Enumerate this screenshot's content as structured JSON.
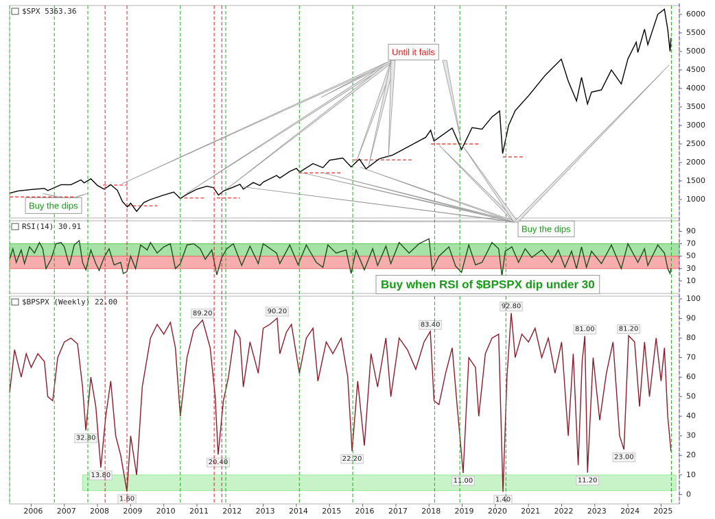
{
  "chart_data": [
    {
      "type": "line",
      "title": "$SPX 5363.36",
      "color": "#000000",
      "xlim": [
        2005.35,
        2025.55
      ],
      "ylim": [
        500,
        6240
      ],
      "yticks": [
        1000,
        1500,
        2000,
        2500,
        3000,
        3500,
        4000,
        4500,
        5000,
        5500,
        6000
      ],
      "x": [
        2005.35,
        2005.6,
        2006.0,
        2006.4,
        2006.5,
        2006.9,
        2007.2,
        2007.5,
        2007.6,
        2007.8,
        2008.0,
        2008.2,
        2008.4,
        2008.6,
        2008.75,
        2008.9,
        2009.0,
        2009.18,
        2009.4,
        2009.6,
        2010.0,
        2010.3,
        2010.5,
        2010.7,
        2011.0,
        2011.3,
        2011.5,
        2011.65,
        2011.8,
        2012.0,
        2012.3,
        2012.4,
        2012.7,
        2012.9,
        2013.0,
        2013.4,
        2013.5,
        2013.8,
        2014.0,
        2014.1,
        2014.5,
        2014.8,
        2015.0,
        2015.4,
        2015.65,
        2015.9,
        2016.1,
        2016.5,
        2016.9,
        2017.3,
        2017.9,
        2018.05,
        2018.15,
        2018.7,
        2018.98,
        2019.3,
        2019.6,
        2019.9,
        2020.13,
        2020.22,
        2020.4,
        2020.6,
        2020.9,
        2021.0,
        2021.5,
        2021.99,
        2022.2,
        2022.45,
        2022.6,
        2022.78,
        2022.9,
        2023.2,
        2023.5,
        2023.8,
        2024.0,
        2024.25,
        2024.3,
        2024.5,
        2024.6,
        2024.9,
        2025.1,
        2025.2,
        2025.27,
        2025.3
      ],
      "values": [
        1170,
        1230,
        1270,
        1300,
        1240,
        1400,
        1400,
        1530,
        1450,
        1560,
        1380,
        1280,
        1400,
        1250,
        950,
        800,
        900,
        680,
        920,
        1000,
        1120,
        1200,
        1030,
        1140,
        1280,
        1360,
        1320,
        1120,
        1230,
        1300,
        1410,
        1280,
        1460,
        1380,
        1470,
        1650,
        1580,
        1760,
        1840,
        1740,
        1970,
        1860,
        2060,
        2120,
        1880,
        2090,
        1830,
        2100,
        2200,
        2390,
        2680,
        2870,
        2580,
        2930,
        2350,
        2940,
        2900,
        3230,
        3390,
        2240,
        3000,
        3400,
        3700,
        3800,
        4350,
        4790,
        4200,
        3660,
        4300,
        3580,
        3900,
        3960,
        4500,
        4120,
        4800,
        5250,
        4970,
        5600,
        5180,
        6000,
        6140,
        5600,
        5000,
        5363.36
      ],
      "support_lines": [
        {
          "x": [
            2005.35,
            2007.3
          ],
          "value": 1070
        },
        {
          "x": [
            2008.17,
            2008.9
          ],
          "value": 1390
        },
        {
          "x": [
            2008.9,
            2009.8
          ],
          "value": 830
        },
        {
          "x": [
            2010.45,
            2011.27
          ],
          "value": 1040
        },
        {
          "x": [
            2011.6,
            2012.3
          ],
          "value": 1040
        },
        {
          "x": [
            2014.07,
            2015.4
          ],
          "value": 1720
        },
        {
          "x": [
            2015.72,
            2017.48
          ],
          "value": 2070
        },
        {
          "x": [
            2018.06,
            2019.55
          ],
          "value": 2500
        },
        {
          "x": [
            2020.23,
            2020.9
          ],
          "value": 2150
        }
      ],
      "support_color": "#e02020",
      "buy_lines": [
        2005.35,
        2006.7,
        2007.71,
        2010.5,
        2011.87,
        2014.09,
        2015.7,
        2018.17,
        2018.93,
        2020.32,
        2025.31
      ],
      "buy_line_color": "#22aa22",
      "fail_lines": [
        2008.23,
        2008.89,
        2011.52,
        2011.75
      ],
      "fail_line_color": "#e02020",
      "callouts": [
        {
          "text": "Until it fails",
          "color": "#e02020"
        },
        {
          "text": "Buy the dips",
          "color": "#1a9a1a"
        },
        {
          "text": "Buy the dips",
          "color": "#1a9a1a"
        }
      ]
    },
    {
      "type": "line",
      "title": "RSI(14) 30.91",
      "color": "#1d4d1d",
      "xlim": [
        2005.35,
        2025.55
      ],
      "ylim": [
        -10,
        107
      ],
      "yticks": [
        10,
        30,
        50,
        70,
        90
      ],
      "bands": [
        {
          "from": 50,
          "to": 70,
          "color": "#5cc85c"
        },
        {
          "from": 30,
          "to": 50,
          "color": "#f06a6a"
        }
      ],
      "x": [
        2005.35,
        2005.45,
        2005.55,
        2005.7,
        2005.8,
        2005.95,
        2006.1,
        2006.25,
        2006.35,
        2006.45,
        2006.6,
        2006.75,
        2006.9,
        2007.0,
        2007.15,
        2007.3,
        2007.45,
        2007.55,
        2007.65,
        2007.8,
        2007.95,
        2008.05,
        2008.2,
        2008.35,
        2008.5,
        2008.7,
        2008.78,
        2008.89,
        2009.0,
        2009.15,
        2009.3,
        2009.5,
        2009.6,
        2009.8,
        2010.0,
        2010.2,
        2010.35,
        2010.5,
        2010.7,
        2010.9,
        2011.1,
        2011.25,
        2011.45,
        2011.6,
        2011.75,
        2011.9,
        2012.1,
        2012.35,
        2012.6,
        2012.85,
        2013.0,
        2013.4,
        2013.5,
        2013.8,
        2014.05,
        2014.3,
        2014.6,
        2014.8,
        2014.95,
        2015.2,
        2015.5,
        2015.65,
        2015.8,
        2016.05,
        2016.3,
        2016.45,
        2016.7,
        2016.85,
        2017.1,
        2017.4,
        2017.7,
        2018.0,
        2018.1,
        2018.3,
        2018.6,
        2018.8,
        2018.98,
        2019.2,
        2019.4,
        2019.6,
        2019.9,
        2020.1,
        2020.2,
        2020.3,
        2020.5,
        2020.7,
        2020.9,
        2021.1,
        2021.4,
        2021.7,
        2021.9,
        2022.1,
        2022.3,
        2022.45,
        2022.6,
        2022.75,
        2022.9,
        2023.2,
        2023.5,
        2023.8,
        2024.0,
        2024.3,
        2024.5,
        2024.6,
        2024.9,
        2025.1,
        2025.2,
        2025.27,
        2025.3
      ],
      "values": [
        45,
        62,
        40,
        60,
        38,
        65,
        55,
        72,
        62,
        30,
        45,
        70,
        72,
        65,
        35,
        68,
        75,
        40,
        28,
        60,
        38,
        27,
        48,
        62,
        36,
        40,
        22,
        25,
        50,
        30,
        68,
        60,
        72,
        55,
        65,
        70,
        30,
        38,
        68,
        70,
        62,
        45,
        60,
        20,
        48,
        62,
        70,
        35,
        66,
        38,
        70,
        55,
        38,
        68,
        36,
        68,
        40,
        32,
        68,
        55,
        60,
        22,
        60,
        28,
        62,
        35,
        66,
        38,
        72,
        55,
        70,
        78,
        28,
        50,
        65,
        34,
        24,
        68,
        36,
        40,
        72,
        62,
        18,
        58,
        65,
        40,
        62,
        48,
        60,
        40,
        60,
        32,
        58,
        30,
        65,
        32,
        58,
        38,
        68,
        30,
        70,
        40,
        62,
        35,
        68,
        55,
        30,
        22,
        30.91
      ],
      "callouts": [
        {
          "text": "Buy when RSI of $BPSPX dip under 30",
          "color": "#1a9a1a"
        }
      ]
    },
    {
      "type": "line",
      "title": "$BPSPX (Weekly) 22.00",
      "color": "#8b1a2b",
      "xlim": [
        2005.35,
        2025.55
      ],
      "ylim": [
        -4.8,
        101.4
      ],
      "yticks": [
        0,
        10,
        20,
        30,
        40,
        50,
        60,
        70,
        80,
        90,
        100
      ],
      "xticks": [
        2006,
        2007,
        2008,
        2009,
        2010,
        2011,
        2012,
        2013,
        2014,
        2015,
        2016,
        2017,
        2018,
        2019,
        2020,
        2021,
        2022,
        2023,
        2024,
        2025
      ],
      "bands": [
        {
          "from": 2,
          "to": 10,
          "x": [
            2007.55,
            2025.45
          ],
          "color": "#9ae89a"
        }
      ],
      "x": [
        2005.35,
        2005.5,
        2005.7,
        2005.85,
        2006.0,
        2006.2,
        2006.4,
        2006.5,
        2006.65,
        2006.8,
        2007.0,
        2007.2,
        2007.4,
        2007.55,
        2007.65,
        2007.8,
        2007.95,
        2008.1,
        2008.25,
        2008.4,
        2008.55,
        2008.7,
        2008.89,
        2009.0,
        2009.18,
        2009.35,
        2009.6,
        2009.8,
        2010.0,
        2010.2,
        2010.35,
        2010.5,
        2010.7,
        2010.9,
        2011.17,
        2011.4,
        2011.55,
        2011.64,
        2011.8,
        2011.95,
        2012.15,
        2012.3,
        2012.4,
        2012.6,
        2012.85,
        2013.0,
        2013.2,
        2013.42,
        2013.5,
        2013.7,
        2013.85,
        2014.09,
        2014.3,
        2014.5,
        2014.65,
        2014.9,
        2015.1,
        2015.35,
        2015.55,
        2015.68,
        2015.85,
        2016.05,
        2016.25,
        2016.45,
        2016.7,
        2016.85,
        2017.1,
        2017.35,
        2017.6,
        2017.85,
        2018.04,
        2018.15,
        2018.3,
        2018.5,
        2018.7,
        2018.85,
        2019.03,
        2019.2,
        2019.4,
        2019.5,
        2019.7,
        2019.9,
        2020.1,
        2020.23,
        2020.35,
        2020.48,
        2020.6,
        2020.8,
        2021.0,
        2021.2,
        2021.4,
        2021.6,
        2021.8,
        2022.0,
        2022.2,
        2022.35,
        2022.5,
        2022.62,
        2022.7,
        2022.78,
        2022.95,
        2023.15,
        2023.35,
        2023.55,
        2023.75,
        2023.88,
        2024.02,
        2024.2,
        2024.35,
        2024.5,
        2024.65,
        2024.85,
        2025.0,
        2025.1,
        2025.2,
        2025.3
      ],
      "values": [
        52,
        74,
        60,
        72,
        65,
        72,
        68,
        50,
        48,
        70,
        78,
        80,
        77,
        55,
        32.8,
        60,
        45,
        13.8,
        40,
        58,
        30,
        20,
        1.6,
        30,
        10,
        55,
        80,
        87,
        82,
        88,
        75,
        40,
        70,
        84,
        89.2,
        75,
        50,
        20.4,
        48,
        60,
        84,
        80,
        55,
        78,
        62,
        85,
        87,
        90.2,
        72,
        83,
        87,
        62,
        80,
        85,
        58,
        78,
        72,
        80,
        60,
        22.2,
        58,
        25,
        72,
        55,
        80,
        50,
        80,
        74,
        64,
        78,
        83.4,
        48,
        46,
        62,
        75,
        45,
        11,
        70,
        65,
        40,
        72,
        80,
        82,
        1.4,
        60,
        92.8,
        70,
        82,
        78,
        85,
        70,
        80,
        62,
        78,
        30,
        72,
        15,
        68,
        81,
        11.2,
        70,
        38,
        62,
        78,
        30,
        23,
        81.2,
        78,
        45,
        78,
        50,
        80,
        58,
        75,
        40,
        22
      ],
      "value_labels": [
        {
          "x": 2011.17,
          "value": 89.2,
          "label": "89.20"
        },
        {
          "x": 2013.42,
          "value": 90.2,
          "label": "90.20"
        },
        {
          "x": 2018.04,
          "value": 83.4,
          "label": "83.40"
        },
        {
          "x": 2020.48,
          "value": 92.8,
          "label": "92.80"
        },
        {
          "x": 2022.7,
          "value": 81,
          "label": "81.00"
        },
        {
          "x": 2024.02,
          "value": 81.2,
          "label": "81.20"
        },
        {
          "x": 2007.65,
          "value": 32.8,
          "label": "32.80"
        },
        {
          "x": 2008.1,
          "value": 13.8,
          "label": "13.80"
        },
        {
          "x": 2008.89,
          "value": 1.6,
          "label": "1.60"
        },
        {
          "x": 2011.64,
          "value": 20.4,
          "label": "20.40"
        },
        {
          "x": 2015.68,
          "value": 22.2,
          "label": "22.20"
        },
        {
          "x": 2019.03,
          "value": 11,
          "label": "11.00"
        },
        {
          "x": 2020.23,
          "value": 1.4,
          "label": "1.40"
        },
        {
          "x": 2022.78,
          "value": 11.2,
          "label": "11.20"
        },
        {
          "x": 2023.88,
          "value": 23,
          "label": "23.00"
        }
      ]
    }
  ]
}
